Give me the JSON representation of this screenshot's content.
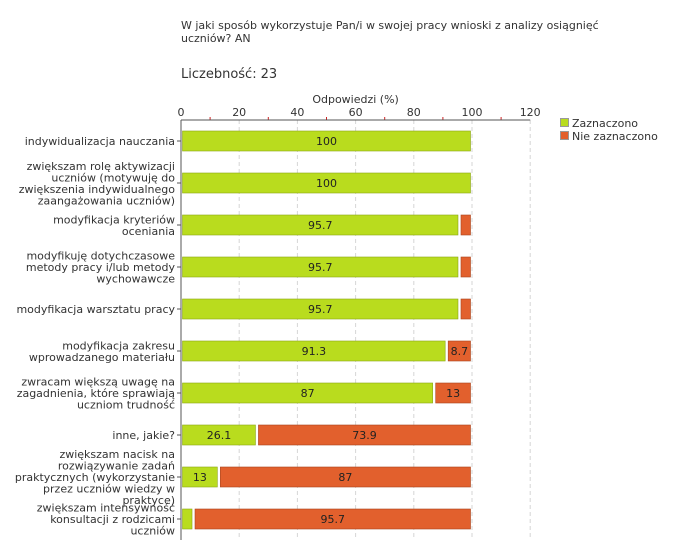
{
  "question": "W jaki sposób wykorzystuje Pan/i w swojej pracy wnioski z analizy osiągnięć uczniów? AN",
  "count_label": "Liczebność:",
  "count_value": "23",
  "colors": {
    "selected": "#b9dc1e",
    "not_selected": "#e2602d",
    "grid": "#d6d6d6",
    "axis": "#555555"
  },
  "chart_data": {
    "type": "bar",
    "orientation": "horizontal",
    "stacked": true,
    "title": "Odpowiedzi (%)",
    "xlim": [
      0,
      120
    ],
    "ticks": [
      0,
      20,
      40,
      60,
      80,
      100,
      120
    ],
    "legend": {
      "position": "top-right",
      "entries": [
        "Zaznaczono",
        "Nie zaznaczono"
      ]
    },
    "categories": [
      [
        "indywidualizacja nauczania"
      ],
      [
        "zwiększam rolę aktywizacji",
        "uczniów (motywuję do",
        "zwiększenia indywidualnego",
        "zaangażowania uczniów)"
      ],
      [
        "modyfikacja kryteriów",
        "oceniania"
      ],
      [
        "modyfikuję dotychczasowe",
        "metody pracy i/lub metody",
        "wychowawcze"
      ],
      [
        "modyfikacja warsztatu pracy"
      ],
      [
        "modyfikacja zakresu",
        "wprowadzanego materiału"
      ],
      [
        "zwracam większą uwagę na",
        "zagadnienia, które sprawiają",
        "uczniom trudność"
      ],
      [
        "inne, jakie?"
      ],
      [
        "zwiększam nacisk na",
        "rozwiązywanie zadań",
        "praktycznych (wykorzystanie",
        "przez uczniów wiedzy w",
        "praktyce)"
      ],
      [
        "zwiększam intensywność",
        "konsultacji z rodzicami",
        "uczniów"
      ]
    ],
    "series": [
      {
        "name": "Zaznaczono",
        "values": [
          100,
          100,
          95.7,
          95.7,
          95.7,
          91.3,
          87,
          26.1,
          13,
          4.3
        ],
        "labels": [
          "100",
          "100",
          "95.7",
          "95.7",
          "95.7",
          "91.3",
          "87",
          "26.1",
          "13",
          ""
        ]
      },
      {
        "name": "Nie zaznaczono",
        "values": [
          0,
          0,
          4.3,
          4.3,
          4.3,
          8.7,
          13,
          73.9,
          87,
          95.7
        ],
        "labels": [
          "",
          "",
          "",
          "",
          "",
          "8.7",
          "13",
          "73.9",
          "87",
          "95.7"
        ]
      }
    ]
  }
}
